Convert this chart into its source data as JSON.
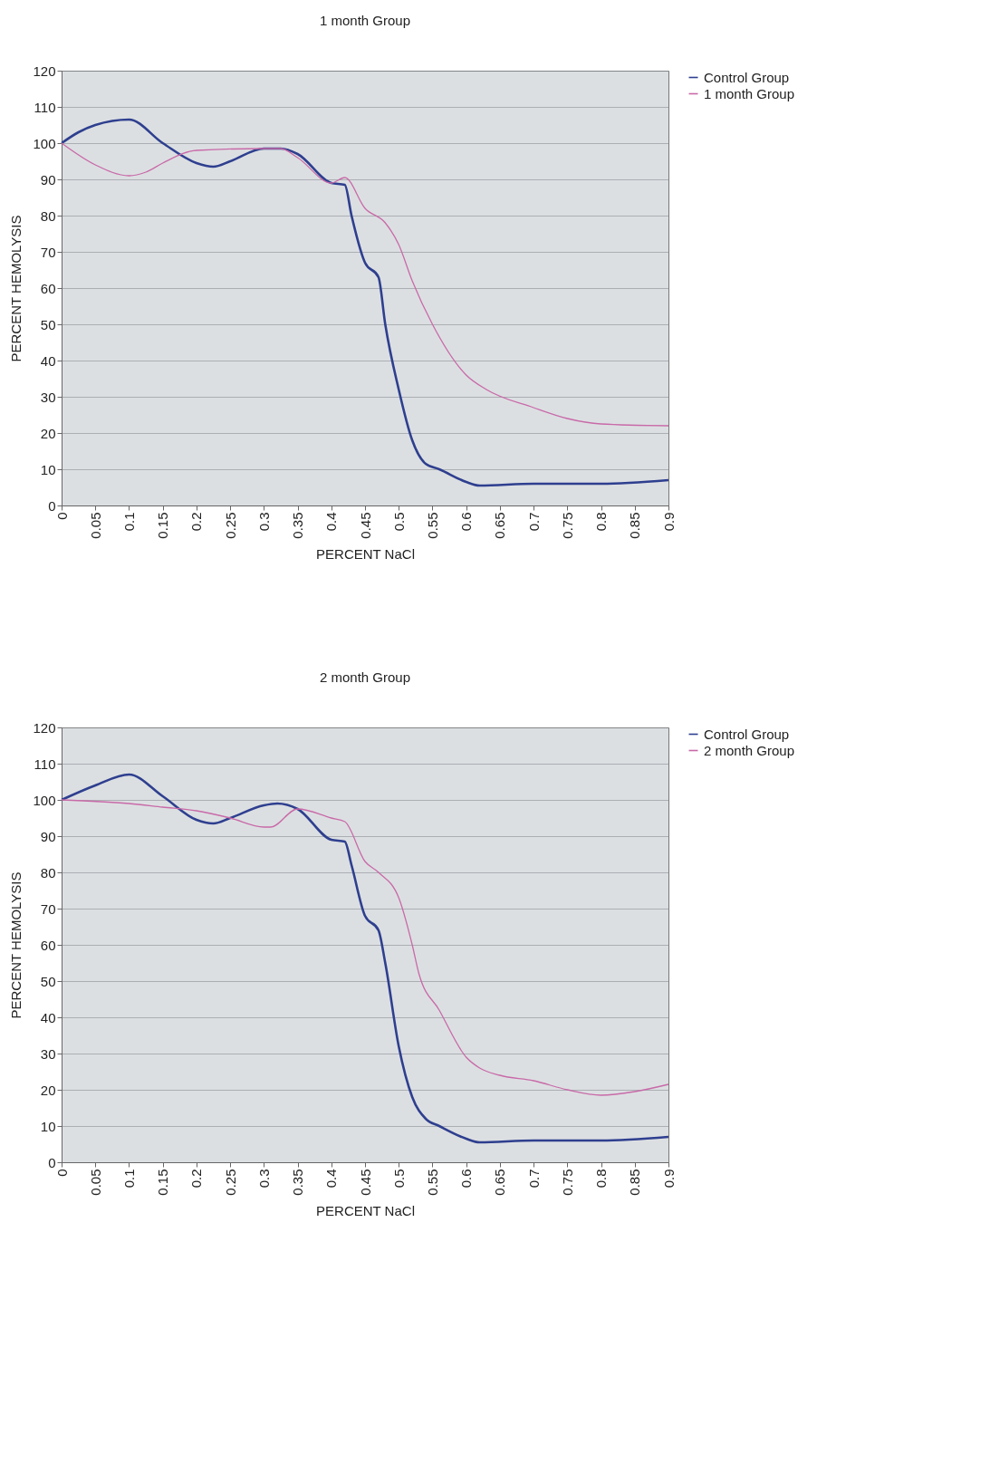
{
  "chart_data": [
    {
      "type": "line",
      "title": "1 month Group",
      "xlabel": "PERCENT NaCl",
      "ylabel": "PERCENT HEMOLYSIS",
      "xlim": [
        0,
        0.9
      ],
      "xticks": [
        0,
        0.05,
        0.1,
        0.15,
        0.2,
        0.25,
        0.3,
        0.35,
        0.4,
        0.45,
        0.5,
        0.55,
        0.6,
        0.65,
        0.7,
        0.75,
        0.8,
        0.85,
        0.9
      ],
      "ylim": [
        0,
        120
      ],
      "yticks": [
        0,
        10,
        20,
        30,
        40,
        50,
        60,
        70,
        80,
        90,
        100,
        110,
        120
      ],
      "grid": "y",
      "legend": "right",
      "series": [
        {
          "name": "Control Group",
          "color": "#2e3f8f",
          "x": [
            0,
            0.025,
            0.05,
            0.1,
            0.15,
            0.2,
            0.225,
            0.25,
            0.3,
            0.325,
            0.35,
            0.4,
            0.42,
            0.43,
            0.45,
            0.47,
            0.48,
            0.5,
            0.52,
            0.54,
            0.56,
            0.6,
            0.62,
            0.7,
            0.8,
            0.9
          ],
          "values": [
            100,
            103,
            105,
            106.5,
            100,
            94.5,
            93.5,
            95,
            98.5,
            98.5,
            97,
            89,
            88.5,
            80,
            67,
            63,
            50,
            32,
            18,
            11.5,
            10,
            6.5,
            5.5,
            6,
            6,
            7
          ]
        },
        {
          "name": "1 month Group",
          "color": "#c86aa8",
          "x": [
            0,
            0.05,
            0.1,
            0.125,
            0.15,
            0.2,
            0.3,
            0.325,
            0.35,
            0.4,
            0.42,
            0.45,
            0.48,
            0.5,
            0.52,
            0.55,
            0.6,
            0.63,
            0.7,
            0.75,
            0.8,
            0.9
          ],
          "values": [
            100,
            94,
            91,
            92,
            94.5,
            98,
            98.5,
            98.5,
            96,
            89,
            90.5,
            82,
            78,
            72,
            62,
            50,
            36,
            32,
            27,
            24,
            22.5,
            22
          ]
        }
      ]
    },
    {
      "type": "line",
      "title": "2 month Group",
      "xlabel": "PERCENT NaCl",
      "ylabel": "PERCENT HEMOLYSIS",
      "xlim": [
        0,
        0.9
      ],
      "xticks": [
        0,
        0.05,
        0.1,
        0.15,
        0.2,
        0.25,
        0.3,
        0.35,
        0.4,
        0.45,
        0.5,
        0.55,
        0.6,
        0.65,
        0.7,
        0.75,
        0.8,
        0.85,
        0.9
      ],
      "ylim": [
        0,
        120
      ],
      "yticks": [
        0,
        10,
        20,
        30,
        40,
        50,
        60,
        70,
        80,
        90,
        100,
        110,
        120
      ],
      "grid": "y",
      "legend": "right",
      "series": [
        {
          "name": "Control Group",
          "color": "#2e3f8f",
          "x": [
            0,
            0.05,
            0.1,
            0.15,
            0.2,
            0.225,
            0.25,
            0.3,
            0.32,
            0.35,
            0.4,
            0.42,
            0.43,
            0.45,
            0.47,
            0.48,
            0.5,
            0.52,
            0.54,
            0.56,
            0.6,
            0.62,
            0.7,
            0.8,
            0.9
          ],
          "values": [
            100,
            104,
            107,
            101,
            94.5,
            93.5,
            95,
            98.5,
            99,
            97.5,
            89,
            88.5,
            82,
            68,
            64,
            55,
            32,
            18,
            12,
            10,
            6.5,
            5.5,
            6,
            6,
            7
          ]
        },
        {
          "name": "2 month Group",
          "color": "#c86aa8",
          "x": [
            0,
            0.1,
            0.15,
            0.2,
            0.25,
            0.3,
            0.31,
            0.35,
            0.4,
            0.42,
            0.45,
            0.47,
            0.5,
            0.52,
            0.53,
            0.56,
            0.6,
            0.62,
            0.65,
            0.7,
            0.75,
            0.8,
            0.85,
            0.9
          ],
          "values": [
            100,
            99,
            98,
            97,
            95,
            92.5,
            92.5,
            97.5,
            95,
            94,
            83,
            80,
            73,
            60,
            52,
            42,
            29,
            26,
            24,
            22.5,
            20,
            18.5,
            19.5,
            21.5
          ]
        }
      ]
    }
  ]
}
